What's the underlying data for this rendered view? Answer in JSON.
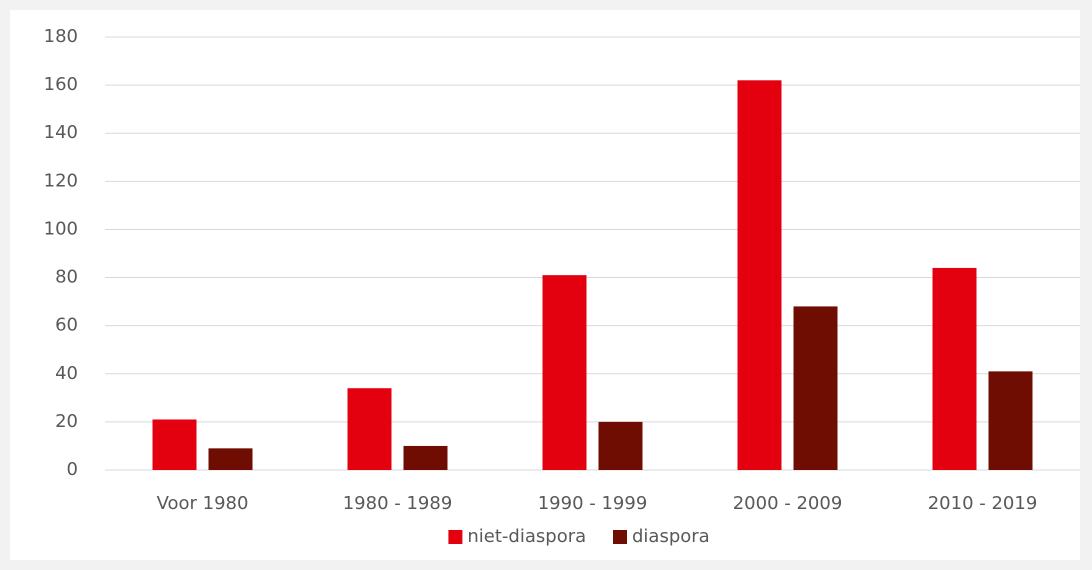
{
  "chart_data": {
    "type": "bar",
    "categories": [
      "Voor 1980",
      "1980 - 1989",
      "1990 - 1999",
      "2000 - 2009",
      "2010 - 2019"
    ],
    "series": [
      {
        "name": "niet-diaspora",
        "color": "#e3000f",
        "values": [
          21,
          34,
          81,
          162,
          84
        ]
      },
      {
        "name": "diaspora",
        "color": "#6f0d02",
        "values": [
          9,
          10,
          20,
          68,
          41
        ]
      }
    ],
    "ylim": [
      0,
      180
    ],
    "yticks": [
      0,
      20,
      40,
      60,
      80,
      100,
      120,
      140,
      160,
      180
    ],
    "grid": true,
    "legend": "bottom"
  }
}
